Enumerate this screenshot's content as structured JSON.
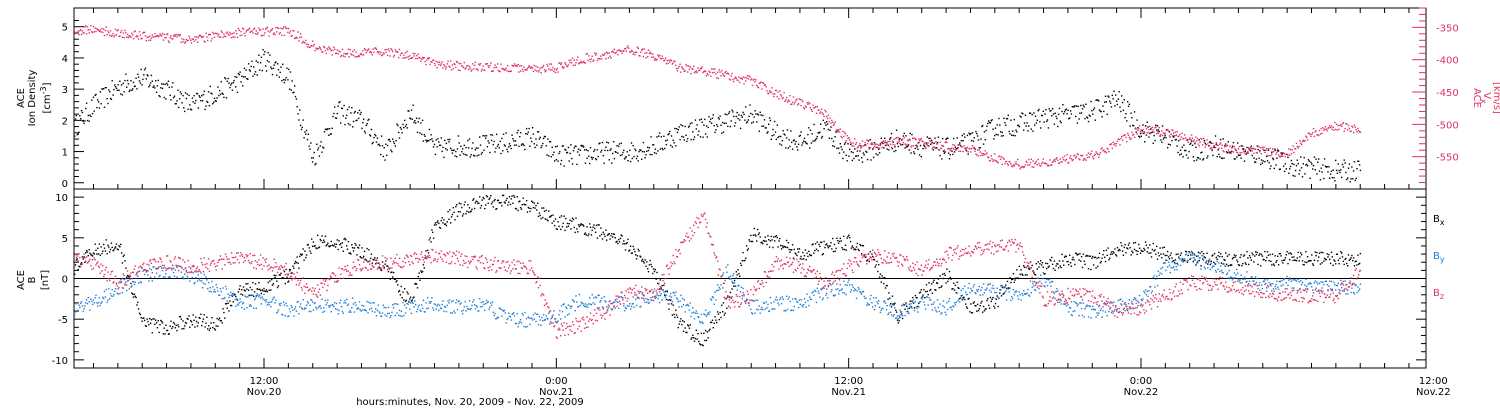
{
  "colors": {
    "black": "#000000",
    "red": "#e0325f",
    "blue": "#1f7fd6",
    "axis": "#000000",
    "right_axis": "#e0325f"
  },
  "xaxis": {
    "label": "hours:minutes, Nov. 20, 2009 - Nov. 22, 2009",
    "range_hours": [
      4.2,
      59.7
    ],
    "ticks": [
      {
        "h": 12,
        "time": "12:00",
        "date": "Nov.20"
      },
      {
        "h": 24,
        "time": "0:00",
        "date": "Nov.21"
      },
      {
        "h": 36,
        "time": "12:00",
        "date": "Nov.21"
      },
      {
        "h": 48,
        "time": "0:00",
        "date": "Nov.22"
      },
      {
        "h": 60,
        "time": "12:00",
        "date": "Nov.22"
      }
    ]
  },
  "chart_data": [
    {
      "type": "scatter",
      "panel": "top",
      "ylabel": [
        "ACE",
        "Ion Density"
      ],
      "yunit": "[cm",
      "yunit_exp": "-3",
      "yunit_end": "]",
      "ylim": [
        -0.2,
        5.6
      ],
      "yticks": [
        0,
        1,
        2,
        3,
        4,
        5
      ],
      "right_axis": {
        "label": "ACE",
        "sublabel_main": "V",
        "sublabel_sub": "x",
        "unit": "[km/s]",
        "ylim": [
          -600,
          -320
        ],
        "ticks": [
          -350,
          -400,
          -450,
          -500,
          -550
        ]
      },
      "series": [
        {
          "color": "#000000",
          "axis": "left",
          "x": [
            4.2,
            5,
            6,
            7,
            8,
            9,
            10,
            11,
            12,
            13,
            14,
            15,
            16,
            17,
            18,
            19,
            20,
            21,
            22,
            23,
            24,
            25,
            26,
            27,
            28,
            29,
            30,
            31,
            32,
            33,
            34,
            35,
            36,
            37,
            38,
            39,
            40,
            41,
            42,
            43,
            44,
            45,
            46,
            47,
            48,
            49,
            50,
            51,
            52,
            53,
            54,
            55,
            56,
            57
          ],
          "y": [
            1.8,
            2.5,
            3.1,
            3.4,
            3.0,
            2.5,
            2.9,
            3.3,
            4.0,
            3.4,
            0.8,
            2.3,
            2.0,
            1.0,
            2.3,
            1.1,
            1.2,
            1.2,
            1.3,
            1.5,
            0.9,
            0.9,
            1.0,
            1.0,
            1.2,
            1.6,
            1.8,
            2.0,
            2.2,
            1.6,
            1.3,
            1.8,
            0.9,
            1.1,
            1.4,
            1.2,
            1.1,
            1.3,
            1.8,
            1.9,
            2.1,
            2.2,
            2.3,
            2.7,
            1.7,
            1.5,
            1.0,
            1.2,
            1.0,
            0.9,
            0.6,
            0.5,
            0.4,
            0.4
          ]
        },
        {
          "color": "#e0325f",
          "axis": "right",
          "x": [
            4.2,
            5,
            6,
            7,
            8,
            9,
            10,
            11,
            12,
            13,
            14,
            15,
            16,
            17,
            18,
            19,
            20,
            21,
            22,
            23,
            24,
            25,
            26,
            27,
            28,
            29,
            30,
            31,
            32,
            33,
            34,
            35,
            36,
            37,
            38,
            39,
            40,
            41,
            42,
            43,
            44,
            45,
            46,
            47,
            48,
            49,
            50,
            51,
            52,
            53,
            54,
            55,
            56,
            57
          ],
          "y": [
            -355,
            -352,
            -358,
            -363,
            -365,
            -368,
            -362,
            -357,
            -356,
            -354,
            -378,
            -387,
            -389,
            -386,
            -393,
            -405,
            -409,
            -410,
            -412,
            -413,
            -412,
            -398,
            -392,
            -383,
            -393,
            -411,
            -416,
            -424,
            -432,
            -452,
            -467,
            -482,
            -527,
            -532,
            -526,
            -528,
            -533,
            -537,
            -552,
            -561,
            -558,
            -552,
            -547,
            -528,
            -506,
            -512,
            -522,
            -532,
            -538,
            -540,
            -544,
            -512,
            -502,
            -506
          ]
        }
      ]
    },
    {
      "type": "scatter",
      "panel": "bottom",
      "ylabel": [
        "ACE",
        "B"
      ],
      "yunit": "[nT]",
      "ylim": [
        -11,
        11
      ],
      "yticks": [
        10,
        5,
        0,
        -5,
        -10
      ],
      "legend_position": "right",
      "series": [
        {
          "name_main": "B",
          "name_sub": "x",
          "color": "#000000",
          "x": [
            4.2,
            5,
            6,
            7,
            8,
            9,
            10,
            11,
            12,
            13,
            14,
            15,
            16,
            17,
            18,
            19,
            20,
            21,
            22,
            23,
            24,
            25,
            26,
            27,
            28,
            29,
            30,
            31,
            32,
            33,
            34,
            35,
            36,
            37,
            38,
            39,
            40,
            41,
            42,
            43,
            44,
            45,
            46,
            47,
            48,
            49,
            50,
            51,
            52,
            53,
            54,
            55,
            56,
            57
          ],
          "y": [
            1.5,
            3.5,
            4.5,
            -5.5,
            -6.0,
            -5.0,
            -5.5,
            -1.5,
            -1.0,
            0.5,
            4.5,
            4.5,
            3.5,
            1.5,
            -3.0,
            6.5,
            8.5,
            9.5,
            9.5,
            9.0,
            7.0,
            6.5,
            5.5,
            4.0,
            1.0,
            -5.5,
            -7.5,
            -3.0,
            5.5,
            4.5,
            3.0,
            4.0,
            4.5,
            2.5,
            -4.5,
            -2.0,
            0.5,
            -3.5,
            -3.0,
            1.0,
            1.5,
            2.5,
            2.0,
            3.5,
            4.0,
            3.0,
            2.5,
            2.5,
            2.5,
            2.5,
            2.5,
            2.5,
            2.5,
            2.5
          ]
        },
        {
          "name_main": "B",
          "name_sub": "y",
          "color": "#1f7fd6",
          "x": [
            4.2,
            5,
            6,
            7,
            8,
            9,
            10,
            11,
            12,
            13,
            14,
            15,
            16,
            17,
            18,
            19,
            20,
            21,
            22,
            23,
            24,
            25,
            26,
            27,
            28,
            29,
            30,
            31,
            32,
            33,
            34,
            35,
            36,
            37,
            38,
            39,
            40,
            41,
            42,
            43,
            44,
            45,
            46,
            47,
            48,
            49,
            50,
            51,
            52,
            53,
            54,
            55,
            56,
            57
          ],
          "y": [
            -3.5,
            -3.0,
            -1.0,
            0.5,
            1.0,
            0.5,
            -1.0,
            -3.0,
            -2.5,
            -4.0,
            -3.0,
            -3.5,
            -3.0,
            -4.0,
            -3.5,
            -3.0,
            -3.5,
            -3.0,
            -5.0,
            -5.0,
            -4.5,
            -2.5,
            -3.0,
            -3.0,
            -2.0,
            -2.5,
            -5.0,
            1.0,
            -3.5,
            -3.0,
            -3.0,
            -1.5,
            -1.0,
            -3.0,
            -4.0,
            -3.0,
            -3.5,
            -1.0,
            -1.5,
            -2.0,
            0.0,
            -3.5,
            -4.0,
            -3.5,
            -2.5,
            1.5,
            2.5,
            1.5,
            0.5,
            -1.0,
            -0.5,
            -1.0,
            -1.0,
            -1.0
          ]
        },
        {
          "name_main": "B",
          "name_sub": "z",
          "color": "#e0325f",
          "x": [
            4.2,
            5,
            6,
            7,
            8,
            9,
            10,
            11,
            12,
            13,
            14,
            15,
            16,
            17,
            18,
            19,
            20,
            21,
            22,
            23,
            24,
            25,
            26,
            27,
            28,
            29,
            30,
            31,
            32,
            33,
            34,
            35,
            36,
            37,
            38,
            39,
            40,
            41,
            42,
            43,
            44,
            45,
            46,
            47,
            48,
            49,
            50,
            51,
            52,
            53,
            54,
            55,
            56,
            57
          ],
          "y": [
            2.5,
            2.0,
            -0.5,
            1.5,
            2.0,
            1.5,
            2.0,
            2.5,
            2.0,
            1.0,
            -2.0,
            0.5,
            2.0,
            2.0,
            2.5,
            3.0,
            2.5,
            2.0,
            1.5,
            1.5,
            -6.5,
            -5.5,
            -4.0,
            -1.5,
            -2.0,
            3.5,
            8.0,
            -3.0,
            -2.0,
            2.0,
            1.5,
            -0.5,
            1.5,
            3.0,
            2.5,
            1.0,
            3.0,
            3.5,
            4.0,
            4.0,
            -2.5,
            -2.0,
            -2.0,
            -4.0,
            -3.5,
            -2.0,
            -0.5,
            -0.5,
            -1.0,
            -1.5,
            -2.0,
            -2.0,
            -2.0,
            1.0
          ]
        }
      ]
    }
  ]
}
